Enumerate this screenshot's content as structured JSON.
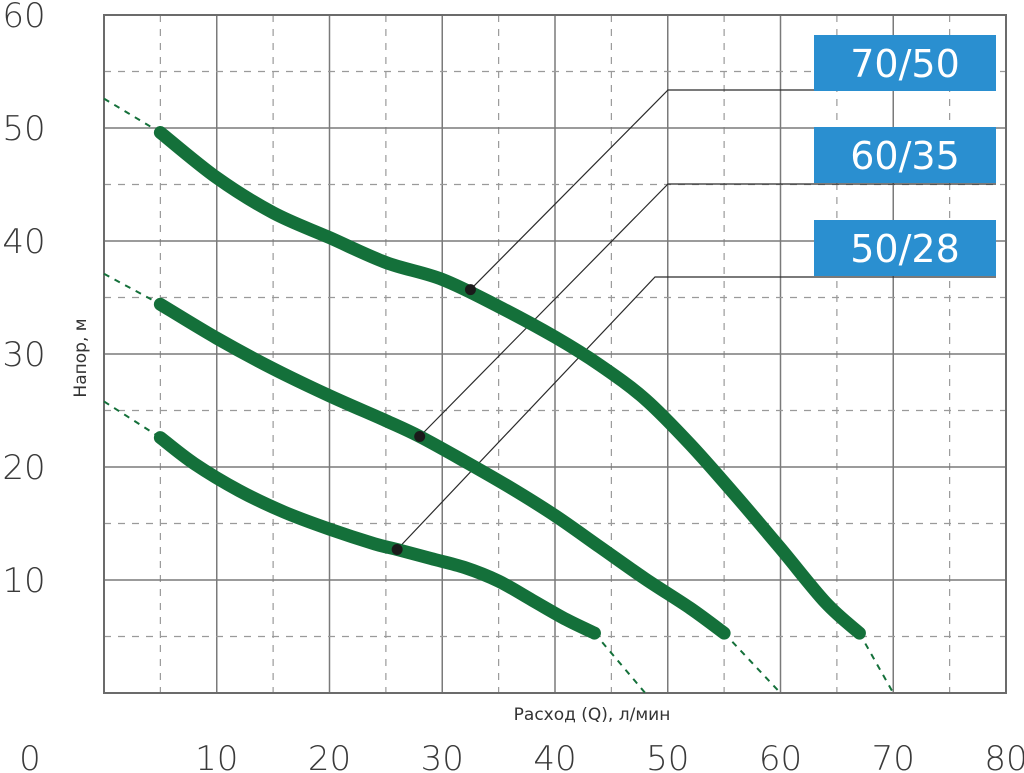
{
  "chart_data": {
    "type": "line",
    "xlabel": "Расход (Q), л/мин",
    "ylabel": "Напор, м",
    "x_ticks": [
      "0",
      "10",
      "20",
      "30",
      "40",
      "50",
      "60",
      "70",
      "80"
    ],
    "y_ticks": [
      "10",
      "20",
      "30",
      "40",
      "50",
      "60"
    ],
    "xlim": [
      0,
      80
    ],
    "ylim": [
      0,
      60
    ],
    "grid": true,
    "line_color": "#14703a",
    "badge_color": "#2a8fd0",
    "series": [
      {
        "name": "70/50",
        "marker": [
          32.5,
          35.7
        ],
        "points": [
          [
            5,
            49.6
          ],
          [
            10,
            45.6
          ],
          [
            15,
            42.5
          ],
          [
            20,
            40.3
          ],
          [
            25,
            38.1
          ],
          [
            30,
            36.6
          ],
          [
            35,
            34.2
          ],
          [
            40,
            31.5
          ],
          [
            44,
            29.0
          ],
          [
            48,
            26.0
          ],
          [
            52,
            22.0
          ],
          [
            56,
            17.5
          ],
          [
            60,
            12.8
          ],
          [
            64,
            8.0
          ],
          [
            67,
            5.3
          ]
        ],
        "extrap_start": [
          [
            0,
            52.6
          ],
          [
            5,
            49.6
          ]
        ],
        "extrap_end": [
          [
            67,
            5.3
          ],
          [
            70,
            0
          ]
        ]
      },
      {
        "name": "60/35",
        "marker": [
          28,
          22.7
        ],
        "points": [
          [
            5,
            34.4
          ],
          [
            10,
            31.4
          ],
          [
            15,
            28.7
          ],
          [
            20,
            26.3
          ],
          [
            25,
            24.1
          ],
          [
            28,
            22.7
          ],
          [
            32,
            20.5
          ],
          [
            36,
            18.2
          ],
          [
            40,
            15.7
          ],
          [
            44,
            12.9
          ],
          [
            48,
            10.1
          ],
          [
            52,
            7.5
          ],
          [
            55,
            5.3
          ]
        ],
        "extrap_start": [
          [
            0,
            37.1
          ],
          [
            5,
            34.4
          ]
        ],
        "extrap_end": [
          [
            55,
            5.3
          ],
          [
            60,
            0
          ]
        ]
      },
      {
        "name": "50/28",
        "marker": [
          26,
          12.7
        ],
        "points": [
          [
            5,
            22.6
          ],
          [
            8,
            20.3
          ],
          [
            12,
            17.9
          ],
          [
            16,
            16.0
          ],
          [
            20,
            14.5
          ],
          [
            24,
            13.2
          ],
          [
            26,
            12.7
          ],
          [
            29,
            11.9
          ],
          [
            32,
            11.1
          ],
          [
            35,
            9.9
          ],
          [
            38,
            8.2
          ],
          [
            41,
            6.5
          ],
          [
            43.5,
            5.3
          ]
        ],
        "extrap_start": [
          [
            0,
            25.8
          ],
          [
            5,
            22.6
          ]
        ],
        "extrap_end": [
          [
            43.5,
            5.3
          ],
          [
            48,
            0
          ]
        ]
      }
    ]
  }
}
